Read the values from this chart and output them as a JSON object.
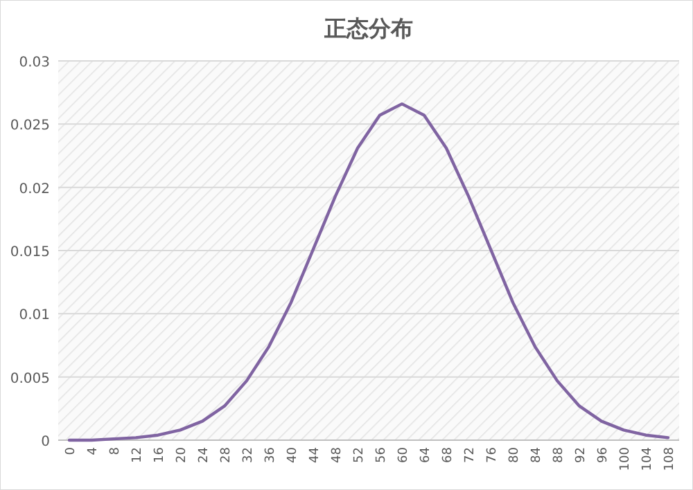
{
  "chart_data": {
    "type": "line",
    "title": "正态分布",
    "categories": [
      "0",
      "4",
      "8",
      "12",
      "16",
      "20",
      "24",
      "28",
      "32",
      "36",
      "40",
      "44",
      "48",
      "52",
      "56",
      "60",
      "64",
      "68",
      "72",
      "76",
      "80",
      "84",
      "88",
      "92",
      "96",
      "100",
      "104",
      "108"
    ],
    "series": [
      {
        "color": "#8064a2",
        "values": [
          0,
          0,
          0.0001,
          0.0002,
          0.0004,
          0.0008,
          0.0015,
          0.0027,
          0.0047,
          0.0074,
          0.0109,
          0.0151,
          0.0193,
          0.0231,
          0.0257,
          0.0266,
          0.0257,
          0.0231,
          0.0193,
          0.0151,
          0.0109,
          0.0074,
          0.0047,
          0.0027,
          0.0015,
          0.0008,
          0.0004,
          0.0002
        ]
      }
    ],
    "ylim": [
      0,
      0.03
    ],
    "yticks": [
      0,
      0.005,
      0.01,
      0.015,
      0.02,
      0.025,
      0.03
    ],
    "grid": "y"
  }
}
